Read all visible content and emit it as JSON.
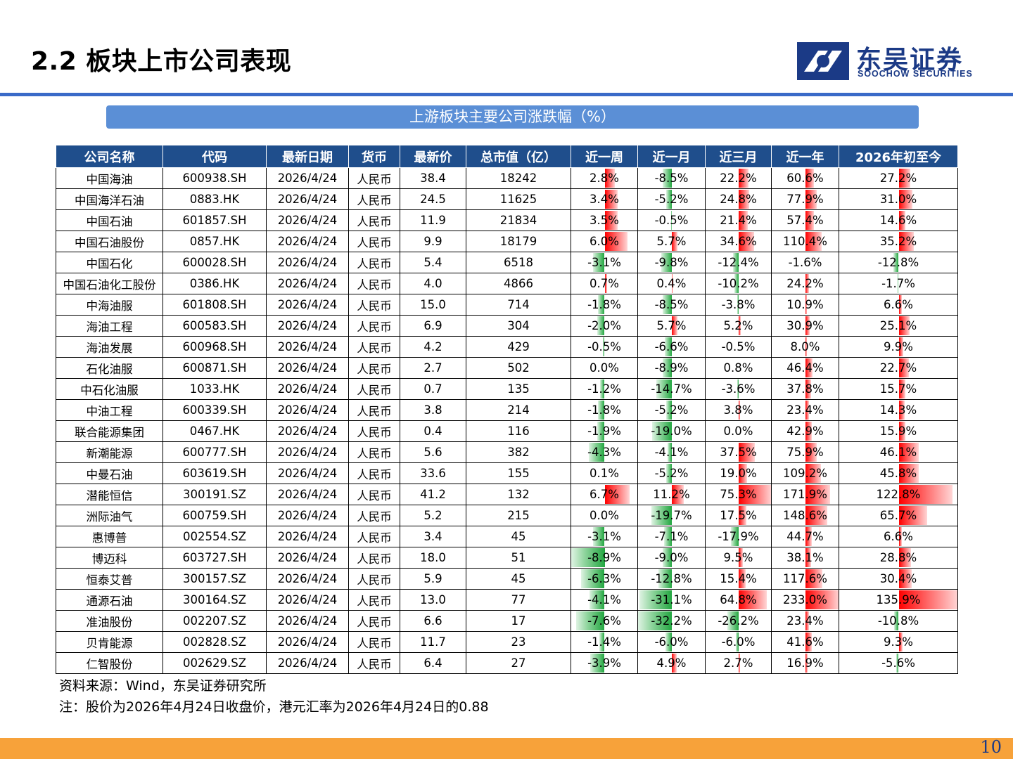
{
  "header": {
    "title": "2.2 板块上市公司表现"
  },
  "logo": {
    "name_cn": "东吴证券",
    "name_en": "SOOCHOW SECURITIES",
    "icon": "soochow-logo-icon"
  },
  "banner": {
    "title": "上游板块主要公司涨跌幅（%）"
  },
  "colors": {
    "header_bg": "#1f4e8c",
    "banner_bg": "#5b8fd6",
    "positive_bar": "#ff0000",
    "negative_bar": "#22a640",
    "footer": "#f7a23a",
    "rule": "#3a6ac8"
  },
  "table": {
    "columns": [
      "公司名称",
      "代码",
      "最新日期",
      "货币",
      "最新价",
      "总市值（亿）",
      "近一周",
      "近一月",
      "近三月",
      "近一年",
      "2026年初至今"
    ],
    "rows": [
      [
        "中国海油",
        "600938.SH",
        "2026/4/24",
        "人民币",
        "38.4",
        "18242",
        "2.8%",
        "-8.5%",
        "22.2%",
        "60.6%",
        "27.2%"
      ],
      [
        "中国海洋石油",
        "0883.HK",
        "2026/4/24",
        "人民币",
        "24.5",
        "11625",
        "3.4%",
        "-5.2%",
        "24.8%",
        "77.9%",
        "31.0%"
      ],
      [
        "中国石油",
        "601857.SH",
        "2026/4/24",
        "人民币",
        "11.9",
        "21834",
        "3.5%",
        "-0.5%",
        "21.4%",
        "57.4%",
        "14.6%"
      ],
      [
        "中国石油股份",
        "0857.HK",
        "2026/4/24",
        "人民币",
        "9.9",
        "18179",
        "6.0%",
        "5.7%",
        "34.6%",
        "110.4%",
        "35.2%"
      ],
      [
        "中国石化",
        "600028.SH",
        "2026/4/24",
        "人民币",
        "5.4",
        "6518",
        "-3.1%",
        "-9.8%",
        "-12.4%",
        "-1.6%",
        "-12.8%"
      ],
      [
        "中国石油化工股份",
        "0386.HK",
        "2026/4/24",
        "人民币",
        "4.0",
        "4866",
        "0.7%",
        "0.4%",
        "-10.2%",
        "24.2%",
        "-1.7%"
      ],
      [
        "中海油服",
        "601808.SH",
        "2026/4/24",
        "人民币",
        "15.0",
        "714",
        "-1.8%",
        "-8.5%",
        "-3.8%",
        "10.9%",
        "6.6%"
      ],
      [
        "海油工程",
        "600583.SH",
        "2026/4/24",
        "人民币",
        "6.9",
        "304",
        "-2.0%",
        "5.7%",
        "5.2%",
        "30.9%",
        "25.1%"
      ],
      [
        "海油发展",
        "600968.SH",
        "2026/4/24",
        "人民币",
        "4.2",
        "429",
        "-0.5%",
        "-6.6%",
        "-0.5%",
        "8.0%",
        "9.9%"
      ],
      [
        "石化油服",
        "600871.SH",
        "2026/4/24",
        "人民币",
        "2.7",
        "502",
        "0.0%",
        "-8.9%",
        "0.8%",
        "46.4%",
        "22.7%"
      ],
      [
        "中石化油服",
        "1033.HK",
        "2026/4/24",
        "人民币",
        "0.7",
        "135",
        "-1.2%",
        "-14.7%",
        "-3.6%",
        "37.8%",
        "15.7%"
      ],
      [
        "中油工程",
        "600339.SH",
        "2026/4/24",
        "人民币",
        "3.8",
        "214",
        "-1.8%",
        "-5.2%",
        "3.8%",
        "23.4%",
        "14.3%"
      ],
      [
        "联合能源集团",
        "0467.HK",
        "2026/4/24",
        "人民币",
        "0.4",
        "116",
        "-1.9%",
        "-19.0%",
        "0.0%",
        "42.9%",
        "15.9%"
      ],
      [
        "新潮能源",
        "600777.SH",
        "2026/4/24",
        "人民币",
        "5.6",
        "382",
        "-4.3%",
        "-4.1%",
        "37.5%",
        "75.9%",
        "46.1%"
      ],
      [
        "中曼石油",
        "603619.SH",
        "2026/4/24",
        "人民币",
        "33.6",
        "155",
        "0.1%",
        "-5.2%",
        "19.0%",
        "109.2%",
        "45.8%"
      ],
      [
        "潜能恒信",
        "300191.SZ",
        "2026/4/24",
        "人民币",
        "41.2",
        "132",
        "6.7%",
        "11.2%",
        "75.3%",
        "171.9%",
        "122.8%"
      ],
      [
        "洲际油气",
        "600759.SH",
        "2026/4/24",
        "人民币",
        "5.2",
        "215",
        "0.0%",
        "-19.7%",
        "17.5%",
        "148.6%",
        "65.7%"
      ],
      [
        "惠博普",
        "002554.SZ",
        "2026/4/24",
        "人民币",
        "3.4",
        "45",
        "-3.1%",
        "-7.1%",
        "-17.9%",
        "44.7%",
        "6.6%"
      ],
      [
        "博迈科",
        "603727.SH",
        "2026/4/24",
        "人民币",
        "18.0",
        "51",
        "-8.9%",
        "-9.0%",
        "9.5%",
        "38.1%",
        "28.8%"
      ],
      [
        "恒泰艾普",
        "300157.SZ",
        "2026/4/24",
        "人民币",
        "5.9",
        "45",
        "-6.3%",
        "-12.8%",
        "15.4%",
        "117.6%",
        "30.4%"
      ],
      [
        "通源石油",
        "300164.SZ",
        "2026/4/24",
        "人民币",
        "13.0",
        "77",
        "-4.1%",
        "-31.1%",
        "64.8%",
        "233.0%",
        "135.9%"
      ],
      [
        "准油股份",
        "002207.SZ",
        "2026/4/24",
        "人民币",
        "6.6",
        "17",
        "-7.6%",
        "-32.2%",
        "-26.2%",
        "23.4%",
        "-10.8%"
      ],
      [
        "贝肯能源",
        "002828.SZ",
        "2026/4/24",
        "人民币",
        "11.7",
        "23",
        "-1.4%",
        "-6.0%",
        "-6.0%",
        "41.6%",
        "9.3%"
      ],
      [
        "仁智股份",
        "002629.SZ",
        "2026/4/24",
        "人民币",
        "6.4",
        "27",
        "-3.9%",
        "4.9%",
        "2.7%",
        "16.9%",
        "-5.6%"
      ]
    ]
  },
  "notes": {
    "source": "资料来源：Wind，东吴证券研究所",
    "note": "注：股价为2026年4月24日收盘价，港元汇率为2026年4月24日的0.88"
  },
  "footer": {
    "page_number": "10"
  }
}
